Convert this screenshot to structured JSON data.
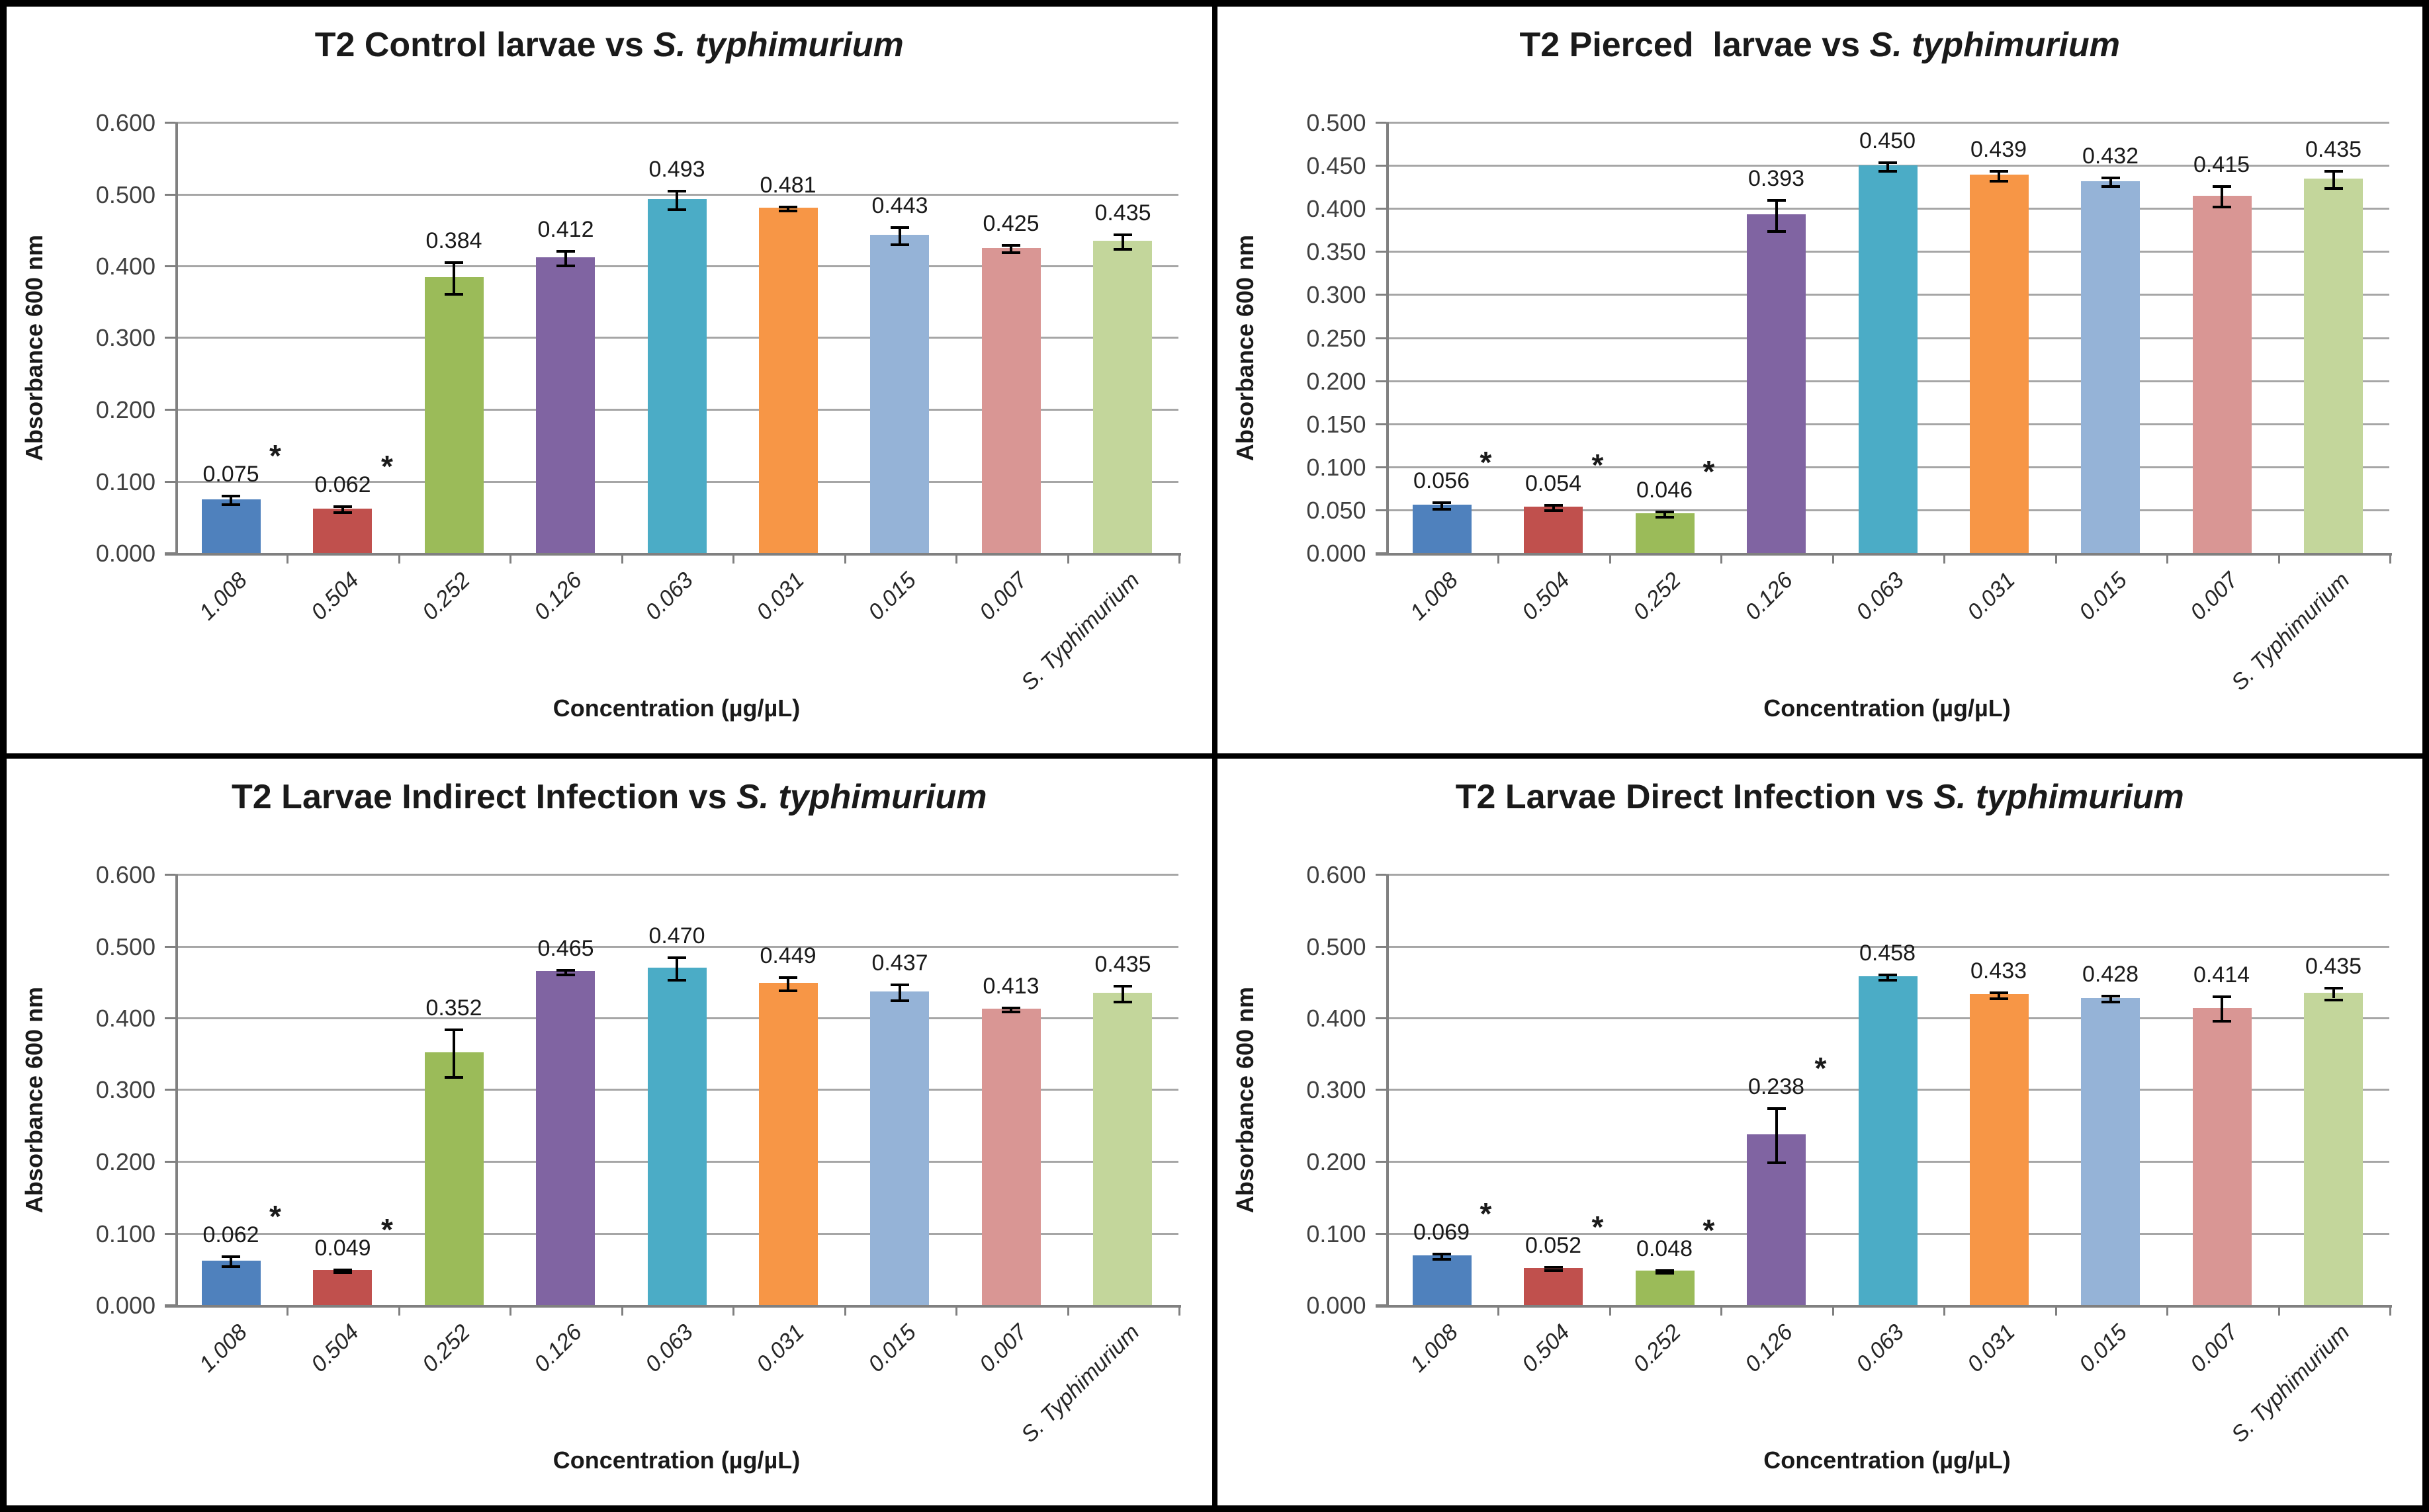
{
  "figure": {
    "ylabel_shared": "Absorbance 600 nm",
    "xlabel_shared": "Concentration (µg/µL)",
    "bar_palette": [
      "#4F81BD",
      "#C0504D",
      "#9BBB59",
      "#8064A2",
      "#4BACC6",
      "#F79646",
      "#95B3D7",
      "#D99694",
      "#C3D69B"
    ],
    "gridline_color": "#a6a6a6",
    "axis_color": "#808080",
    "error_bar_color": "#000000"
  },
  "chart_data": [
    {
      "type": "bar",
      "title_prefix": "T2 Control larvae vs ",
      "title_italic": "S. typhimurium",
      "xlabel": "Concentration (µg/µL)",
      "ylabel": "Absorbance 600 nm",
      "ylim": [
        0,
        0.6
      ],
      "ytick_step": 0.1,
      "ytick_labels": [
        "0.000",
        "0.100",
        "0.200",
        "0.300",
        "0.400",
        "0.500",
        "0.600"
      ],
      "categories": [
        "1.008",
        "0.504",
        "0.252",
        "0.126",
        "0.063",
        "0.031",
        "0.015",
        "0.007",
        "S. Typhimurium"
      ],
      "values": [
        0.075,
        0.062,
        0.384,
        0.412,
        0.493,
        0.481,
        0.443,
        0.425,
        0.435
      ],
      "labels": [
        "0.075",
        "0.062",
        "0.384",
        "0.412",
        "0.493",
        "0.481",
        "0.443",
        "0.425",
        "0.435"
      ],
      "errors": [
        0.006,
        0.004,
        0.022,
        0.01,
        0.013,
        0.003,
        0.012,
        0.005,
        0.01
      ],
      "starred": [
        true,
        true,
        false,
        false,
        false,
        false,
        false,
        false,
        false
      ],
      "legend": "none",
      "grid": "horizontal"
    },
    {
      "type": "bar",
      "title_prefix": "T2 Pierced  larvae vs ",
      "title_italic": "S. typhimurium",
      "xlabel": "Concentration (µg/µL)",
      "ylabel": "Absorbance 600 nm",
      "ylim": [
        0,
        0.5
      ],
      "ytick_step": 0.05,
      "ytick_labels": [
        "0.000",
        "0.050",
        "0.100",
        "0.150",
        "0.200",
        "0.250",
        "0.300",
        "0.350",
        "0.400",
        "0.450",
        "0.500"
      ],
      "categories": [
        "1.008",
        "0.504",
        "0.252",
        "0.126",
        "0.063",
        "0.031",
        "0.015",
        "0.007",
        "S. Typhimurium"
      ],
      "values": [
        0.056,
        0.054,
        0.046,
        0.393,
        0.45,
        0.439,
        0.432,
        0.415,
        0.435
      ],
      "labels": [
        "0.056",
        "0.054",
        "0.046",
        "0.393",
        "0.450",
        "0.439",
        "0.432",
        "0.415",
        "0.435"
      ],
      "errors": [
        0.004,
        0.003,
        0.003,
        0.018,
        0.005,
        0.006,
        0.005,
        0.012,
        0.01
      ],
      "starred": [
        true,
        true,
        true,
        false,
        false,
        false,
        false,
        false,
        false
      ],
      "legend": "none",
      "grid": "horizontal"
    },
    {
      "type": "bar",
      "title_prefix": "T2 Larvae Indirect Infection vs ",
      "title_italic": "S. typhimurium",
      "xlabel": "Concentration (µg/µL)",
      "ylabel": "Absorbance 600 nm",
      "ylim": [
        0,
        0.6
      ],
      "ytick_step": 0.1,
      "ytick_labels": [
        "0.000",
        "0.100",
        "0.200",
        "0.300",
        "0.400",
        "0.500",
        "0.600"
      ],
      "categories": [
        "1.008",
        "0.504",
        "0.252",
        "0.126",
        "0.063",
        "0.031",
        "0.015",
        "0.007",
        "S. Typhimurium"
      ],
      "values": [
        0.062,
        0.049,
        0.352,
        0.465,
        0.47,
        0.449,
        0.437,
        0.413,
        0.435
      ],
      "labels": [
        "0.062",
        "0.049",
        "0.352",
        "0.465",
        "0.470",
        "0.449",
        "0.437",
        "0.413",
        "0.435"
      ],
      "errors": [
        0.007,
        0.002,
        0.033,
        0.003,
        0.016,
        0.009,
        0.011,
        0.003,
        0.011
      ],
      "starred": [
        true,
        true,
        false,
        false,
        false,
        false,
        false,
        false,
        false
      ],
      "legend": "none",
      "grid": "horizontal"
    },
    {
      "type": "bar",
      "title_prefix": "T2 Larvae Direct Infection vs ",
      "title_italic": "S. typhimurium",
      "xlabel": "Concentration (µg/µL)",
      "ylabel": "Absorbance 600 nm",
      "ylim": [
        0,
        0.6
      ],
      "ytick_step": 0.1,
      "ytick_labels": [
        "0.000",
        "0.100",
        "0.200",
        "0.300",
        "0.400",
        "0.500",
        "0.600"
      ],
      "categories": [
        "1.008",
        "0.504",
        "0.252",
        "0.126",
        "0.063",
        "0.031",
        "0.015",
        "0.007",
        "S. Typhimurium"
      ],
      "values": [
        0.069,
        0.052,
        0.048,
        0.238,
        0.458,
        0.433,
        0.428,
        0.414,
        0.435
      ],
      "labels": [
        "0.069",
        "0.052",
        "0.048",
        "0.238",
        "0.458",
        "0.433",
        "0.428",
        "0.414",
        "0.435"
      ],
      "errors": [
        0.004,
        0.002,
        0.002,
        0.038,
        0.004,
        0.004,
        0.004,
        0.017,
        0.008
      ],
      "starred": [
        true,
        true,
        true,
        true,
        false,
        false,
        false,
        false,
        false
      ],
      "legend": "none",
      "grid": "horizontal"
    }
  ]
}
